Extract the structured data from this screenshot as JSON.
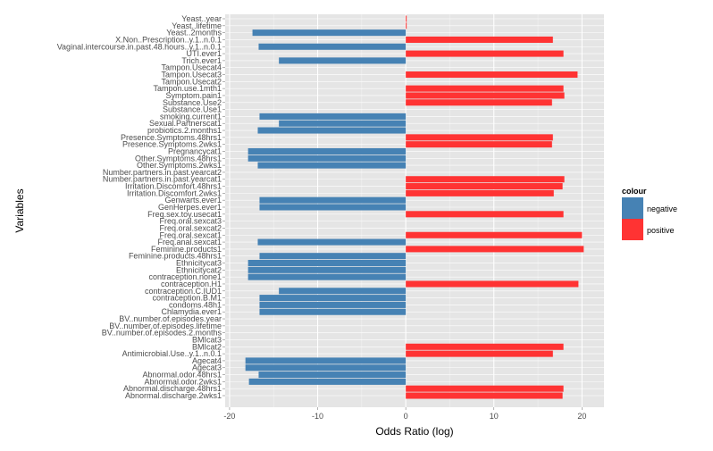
{
  "colors": {
    "negative": "#4682B4",
    "positive": "#FF3333",
    "panel": "#E5E5E5",
    "grid_major": "#FFFFFF",
    "grid_minor": "#F2F2F2",
    "axis_text": "#4D4D4D"
  },
  "chart_data": {
    "type": "bar",
    "orientation": "horizontal",
    "title": "",
    "xlabel": "Odds Ratio (log)",
    "ylabel": "Variables",
    "xlim": [
      -20.5,
      22.5
    ],
    "xticks": [
      -20,
      -10,
      0,
      10,
      20
    ],
    "xtick_labels": [
      "-20",
      "-10",
      "0",
      "10",
      "20"
    ],
    "grid": true,
    "legend": {
      "title": "colour",
      "placement": "right",
      "entries": [
        {
          "name": "negative",
          "color": "#4682B4"
        },
        {
          "name": "positive",
          "color": "#FF3333"
        }
      ]
    },
    "categories": [
      "Yeast..year",
      "Yeast..lifetime",
      "Yeast..2months",
      "X.Non..Prescription..y.1..n.0.1",
      "Vaginal.intercourse.in.past.48.hours..y.1..n.0.1",
      "UTI.ever1",
      "Trich.ever1",
      "Tampon.Usecat4",
      "Tampon.Usecat3",
      "Tampon.Usecat2",
      "Tampon.use.1mth1",
      "Symptom.pain1",
      "Substance.Use2",
      "Substance.Use1",
      "smoking.current1",
      "Sexual.Partnerscat1",
      "probiotics.2.months1",
      "Presence.Symptoms.48hrs1",
      "Presence.Symptoms.2wks1",
      "Pregnancycat1",
      "Other.Symptoms.48hrs1",
      "Other.Symptoms.2wks1",
      "Number.partners.in.past.yearcat2",
      "Number.partners.in.past.yearcat1",
      "Irritation.Discomfort.48hrs1",
      "Irritation.Discomfort.2wks1",
      "Genwarts.ever1",
      "GenHerpes.ever1",
      "Freq.sex.toy.usecat1",
      "Freq.oral.sexcat3",
      "Freq.oral.sexcat2",
      "Freq.oral.sexcat1",
      "Freq.anal.sexcat1",
      "Feminine.products1",
      "Feminine.products.48hrs1",
      "Ethnicitycat3",
      "Ethnicitycat2",
      "contraception.none1",
      "contraception.H1",
      "contraception.C.IUD1",
      "contraception.B.M1",
      "condoms.48h1",
      "Chlamydia.ever1",
      "BV..number.of.episodes.year",
      "BV..number.of.episodes.lifetime",
      "BV..number.of.episodes.2.months",
      "BMIcat3",
      "BMIcat2",
      "Antimicrobial.Use..y.1..n.0.1",
      "Agecat4",
      "Agecat3",
      "Abnormal.odor.48hrs1",
      "Abnormal.odor.2wks1",
      "Abnormal.discharge.48hrs1",
      "Abnormal.discharge.2wks1"
    ],
    "series": [
      {
        "name": "negative",
        "color": "#4682B4",
        "values": [
          null,
          null,
          -17.4,
          null,
          -16.7,
          null,
          -14.4,
          null,
          null,
          null,
          null,
          null,
          null,
          null,
          -16.6,
          -14.4,
          -16.8,
          null,
          null,
          -17.9,
          -17.9,
          -16.8,
          null,
          null,
          null,
          null,
          -16.6,
          -16.6,
          null,
          null,
          null,
          null,
          -16.8,
          null,
          -16.6,
          -17.9,
          -17.9,
          -17.9,
          null,
          -14.4,
          -16.6,
          -16.6,
          -16.6,
          null,
          null,
          null,
          null,
          null,
          null,
          -18.2,
          -18.2,
          -16.7,
          -17.8,
          null,
          null
        ]
      },
      {
        "name": "positive",
        "color": "#FF3333",
        "values": [
          0.1,
          0.1,
          null,
          16.7,
          null,
          17.9,
          null,
          null,
          19.5,
          null,
          17.9,
          18.0,
          16.6,
          null,
          null,
          null,
          null,
          16.7,
          16.6,
          null,
          null,
          null,
          null,
          18.0,
          17.8,
          16.8,
          null,
          null,
          17.9,
          null,
          null,
          20.0,
          null,
          20.2,
          null,
          null,
          null,
          null,
          19.6,
          null,
          null,
          null,
          null,
          null,
          null,
          null,
          null,
          17.9,
          16.7,
          null,
          null,
          null,
          null,
          17.9,
          17.8
        ]
      }
    ]
  }
}
